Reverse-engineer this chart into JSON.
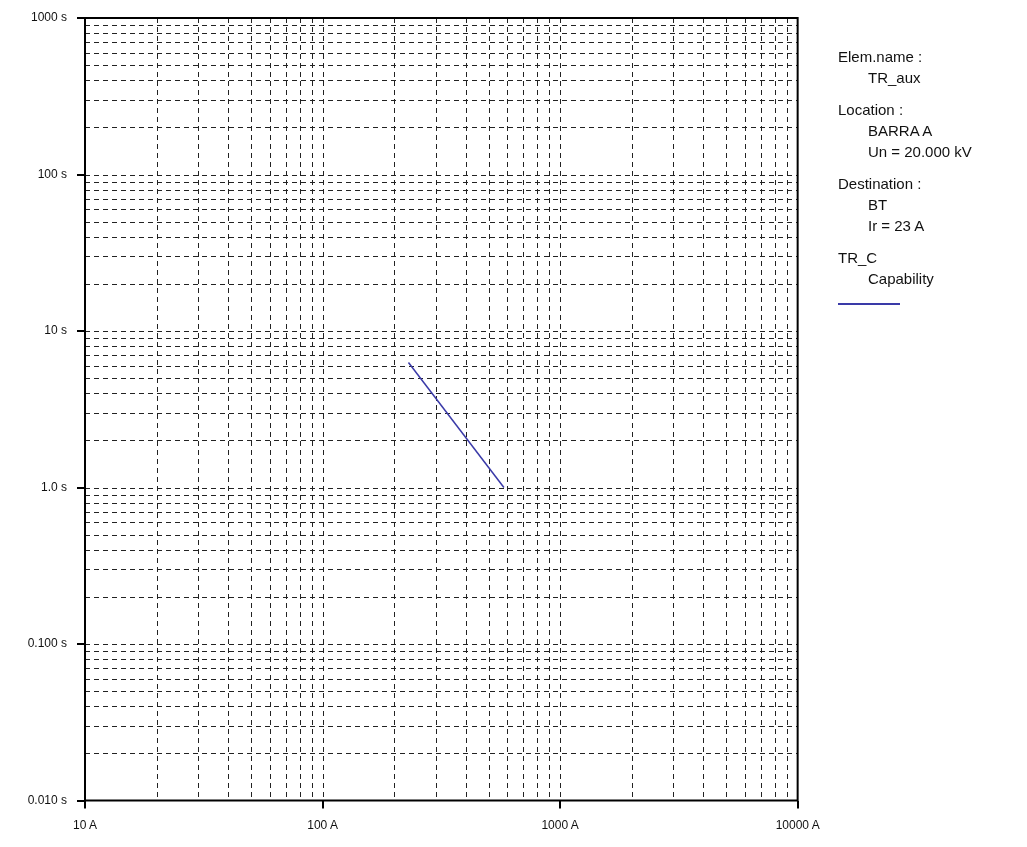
{
  "chart_data": {
    "type": "line",
    "log": "xy",
    "grid": true,
    "legend": "right",
    "marker": "none",
    "line_style": "solid",
    "xlim": [
      10,
      10000
    ],
    "ylim": [
      0.01,
      1000
    ],
    "xticks": [
      {
        "value": 10,
        "label": "10 A"
      },
      {
        "value": 100,
        "label": "100 A"
      },
      {
        "value": 1000,
        "label": "1000 A"
      },
      {
        "value": 10000,
        "label": "10000 A"
      }
    ],
    "yticks": [
      {
        "value": 0.01,
        "label": "0.010 s"
      },
      {
        "value": 0.1,
        "label": "0.100 s"
      },
      {
        "value": 1,
        "label": "1.0 s"
      },
      {
        "value": 10,
        "label": "10 s"
      },
      {
        "value": 100,
        "label": "100 s"
      },
      {
        "value": 1000,
        "label": "1000 s"
      }
    ],
    "annotations": [
      "Elem.name :",
      "TR_aux",
      "Location :",
      "BARRA A",
      "Un = 20.000 kV",
      "Destination :",
      "BT",
      "Ir = 23 A",
      "TR_C"
    ],
    "series": [
      {
        "name": "Capability",
        "color": "#3a3aa8",
        "x": [
          230,
          580
        ],
        "values": [
          6.3,
          1.0
        ]
      }
    ]
  }
}
